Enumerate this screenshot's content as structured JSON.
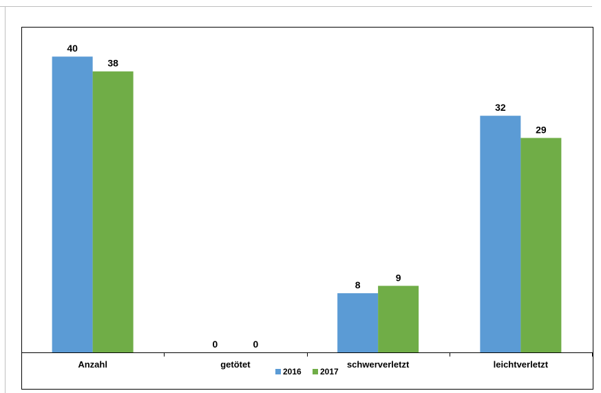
{
  "chart_data": {
    "type": "bar",
    "categories": [
      "Anzahl",
      "getötet",
      "schwerverletzt",
      "leichtverletzt"
    ],
    "series": [
      {
        "name": "2016",
        "values": [
          40,
          0,
          8,
          32
        ],
        "color": "#5b9bd5"
      },
      {
        "name": "2017",
        "values": [
          38,
          0,
          9,
          29
        ],
        "color": "#70ad47"
      }
    ],
    "ylim": [
      0,
      43
    ],
    "grid": false,
    "legend_position": "bottom",
    "data_labels": true
  },
  "colors": {
    "plot_background": "#ffffff",
    "axis": "#000000",
    "border": "#000000"
  }
}
